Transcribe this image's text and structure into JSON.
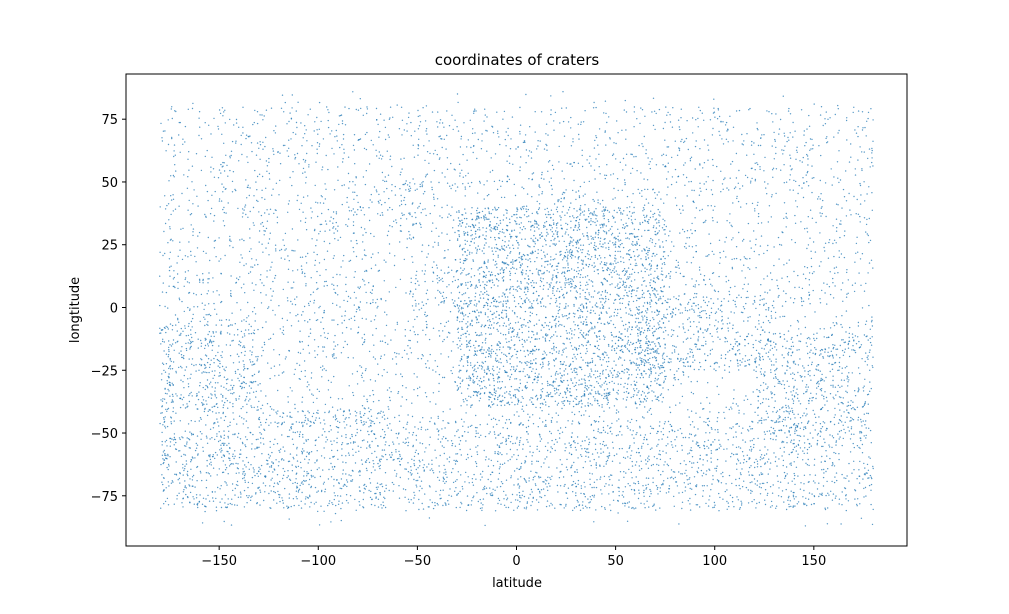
{
  "chart_data": {
    "type": "scatter",
    "title": "coordinates of craters",
    "xlabel": "latitude",
    "ylabel": "longtitude",
    "xlim": [
      -197,
      197
    ],
    "ylim": [
      -95,
      93
    ],
    "x_ticks": [
      -150,
      -100,
      -50,
      0,
      50,
      100,
      150
    ],
    "y_ticks": [
      -75,
      -50,
      -25,
      0,
      25,
      50,
      75
    ],
    "x_tick_labels": [
      "−150",
      "−100",
      "−50",
      "0",
      "50",
      "100",
      "150"
    ],
    "y_tick_labels": [
      "−75",
      "−50",
      "−25",
      "0",
      "25",
      "50",
      "75"
    ],
    "grid": false,
    "marker_color": "#1f77b4",
    "point_extent": {
      "x": [
        -180,
        180
      ],
      "y": [
        -87,
        86
      ]
    },
    "density_regions": [
      {
        "x": [
          -30,
          75
        ],
        "y": [
          -40,
          40
        ],
        "weight": 5.0
      },
      {
        "x": [
          -180,
          -130
        ],
        "y": [
          -40,
          -5
        ],
        "weight": 3.0
      },
      {
        "x": [
          60,
          130
        ],
        "y": [
          -25,
          5
        ],
        "weight": 2.5
      },
      {
        "x": [
          120,
          180
        ],
        "y": [
          -50,
          -10
        ],
        "weight": 2.5
      },
      {
        "x": [
          -180,
          -60
        ],
        "y": [
          -80,
          -40
        ],
        "weight": 2.5
      },
      {
        "x": [
          -60,
          180
        ],
        "y": [
          -80,
          -45
        ],
        "weight": 1.8
      },
      {
        "x": [
          -70,
          -45
        ],
        "y": [
          30,
          50
        ],
        "weight": 1.5
      },
      {
        "x": [
          -55,
          -30
        ],
        "y": [
          -10,
          15
        ],
        "weight": 1.5
      }
    ]
  }
}
